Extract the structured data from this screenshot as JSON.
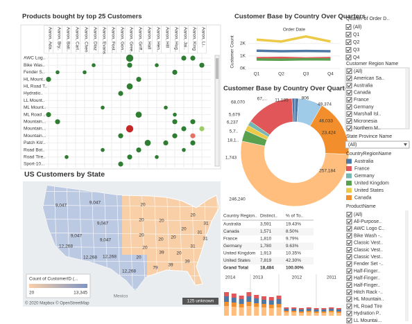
{
  "products": {
    "title": "Products bought by top 25 Customers",
    "columns": [
      "Aaron, Ada..",
      "Aaron, Bry..",
      "Aaron, Bati..",
      "Aaron, Carl..",
      "Aaron, Chen",
      "Aaron, Diaz",
      "Aaron, Evans",
      "Aaron, Fost..",
      "Aaron, Gon..",
      "Aaron, Gree..",
      "Aaron, Griff..",
      "Aaron, Hall",
      "Aaron, Hen..",
      "Aaron, Hill",
      "Aaron, Hug..",
      "Aaron, Jai..",
      "Aaron, King",
      "Aaron, Li.."
    ],
    "rows": [
      "AWC Log..",
      "Bike Was..",
      "Fender S..",
      "HL Mount..",
      "HL Road T..",
      "Hydratio..",
      "LL Mount..",
      "ML Mount..",
      "ML Road ..",
      "Mountain...",
      "Mountain...",
      "Mountain...",
      "Patch Kit/..",
      "Road Bot..",
      "Road Tire..",
      "Sport-10..."
    ],
    "color": "#2e7d32",
    "dots": [
      {
        "row": 0,
        "col": 9,
        "value": 5
      },
      {
        "row": 0,
        "col": 15,
        "value": 3
      },
      {
        "row": 0,
        "col": 16,
        "value": 3
      },
      {
        "row": 1,
        "col": 5,
        "value": 2
      },
      {
        "row": 1,
        "col": 9,
        "value": 3
      },
      {
        "row": 1,
        "col": 12,
        "value": 2
      },
      {
        "row": 1,
        "col": 17,
        "value": 3
      },
      {
        "row": 2,
        "col": 1,
        "value": 2
      },
      {
        "row": 2,
        "col": 4,
        "value": 2
      },
      {
        "row": 2,
        "col": 14,
        "value": 3
      },
      {
        "row": 3,
        "col": 0,
        "value": 3
      },
      {
        "row": 3,
        "col": 10,
        "value": 3
      },
      {
        "row": 4,
        "col": 9,
        "value": 4
      },
      {
        "row": 5,
        "col": 8,
        "value": 3
      },
      {
        "row": 7,
        "col": 6,
        "value": 2
      },
      {
        "row": 7,
        "col": 13,
        "value": 2
      },
      {
        "row": 8,
        "col": 0,
        "value": 3
      },
      {
        "row": 8,
        "col": 10,
        "value": 4
      },
      {
        "row": 8,
        "col": 14,
        "value": 2
      },
      {
        "row": 9,
        "col": 1,
        "value": 3
      },
      {
        "row": 9,
        "col": 14,
        "value": 3
      },
      {
        "row": 9,
        "col": 16,
        "value": 3
      },
      {
        "row": 10,
        "col": 9,
        "value": 5,
        "color": "#c62828"
      },
      {
        "row": 10,
        "col": 15,
        "value": 3
      },
      {
        "row": 10,
        "col": 17,
        "value": 3,
        "color": "#9ccc65"
      },
      {
        "row": 11,
        "col": 8,
        "value": 3
      },
      {
        "row": 11,
        "col": 14,
        "value": 3
      },
      {
        "row": 11,
        "col": 16,
        "value": 3,
        "color": "#e57368"
      },
      {
        "row": 12,
        "col": 11,
        "value": 4
      },
      {
        "row": 12,
        "col": 13,
        "value": 3
      },
      {
        "row": 12,
        "col": 16,
        "value": 3
      },
      {
        "row": 13,
        "col": 6,
        "value": 2
      },
      {
        "row": 13,
        "col": 10,
        "value": 3
      },
      {
        "row": 13,
        "col": 15,
        "value": 2
      },
      {
        "row": 14,
        "col": 2,
        "value": 2
      },
      {
        "row": 14,
        "col": 9,
        "value": 3
      },
      {
        "row": 14,
        "col": 12,
        "value": 2
      },
      {
        "row": 15,
        "col": 8,
        "value": 3
      }
    ]
  },
  "line": {
    "title": "Customer Base by Country Over Quarters",
    "x_label": "Order Date",
    "y_label": "Customer Count",
    "categories": [
      "Q1",
      "Q2",
      "Q3",
      "Q4"
    ],
    "ylim": [
      0,
      2700
    ],
    "yticks": [
      {
        "value": 0,
        "label": "0K"
      },
      {
        "value": 1000,
        "label": "1K"
      },
      {
        "value": 2000,
        "label": "2K"
      }
    ],
    "series": [
      {
        "color": "#edc948",
        "values": [
          2300,
          2150,
          2550,
          2150
        ]
      },
      {
        "color": "#4e79a7",
        "values": [
          1420,
          1380,
          1400,
          1380
        ]
      },
      {
        "color": "#e15759",
        "values": [
          820,
          850,
          800,
          830
        ]
      },
      {
        "color": "#59a14f",
        "values": [
          720,
          700,
          740,
          720
        ]
      }
    ]
  },
  "donut": {
    "title": "Customer Base by Country Over Quarters",
    "segments": [
      {
        "value": 4,
        "color": "#4e79a7"
      },
      {
        "value": 26,
        "color": "#a0cbe8"
      },
      {
        "value": 62,
        "color": "#f28e2b"
      },
      {
        "value": 190,
        "color": "#ffbe7d"
      },
      {
        "value": 12,
        "color": "#59a14f"
      },
      {
        "value": 6,
        "color": "#edc948"
      },
      {
        "value": 5,
        "color": "#76b7b2"
      },
      {
        "value": 52,
        "color": "#e15759"
      },
      {
        "value": 3,
        "color": "#4e79a7"
      }
    ],
    "labels": [
      "68,070",
      "67,...",
      "11,185",
      "806",
      "49,374",
      "5,679",
      "6,237",
      "46,033",
      "5,7..",
      "23,424",
      "18,1..",
      "1,743",
      "257,184",
      "246,240"
    ]
  },
  "filters": {
    "quarter_title": "Quarter of Order D..",
    "quarters": [
      "(All)",
      "Q1",
      "Q2",
      "Q3",
      "Q4"
    ],
    "region_title": "Customer Region Name",
    "regions": [
      "(All)",
      "American Sa..",
      "Australia",
      "Canada",
      "France",
      "Germany",
      "Marshall Isl..",
      "Micronesia",
      "Northern M.."
    ],
    "state_title": "State Province Name",
    "state_value": "(All)",
    "legend_title": "CountryRegionName",
    "legend": [
      {
        "name": "Australia",
        "color": "#4e79a7"
      },
      {
        "name": "France",
        "color": "#e15759"
      },
      {
        "name": "Germany",
        "color": "#76b7b2"
      },
      {
        "name": "United Kingdom",
        "color": "#59a14f"
      },
      {
        "name": "United States",
        "color": "#edc948"
      },
      {
        "name": "Canada",
        "color": "#f28e2b"
      }
    ],
    "product_title": "ProductName",
    "products": [
      "(All)",
      "All-Purpose..",
      "AWC Logo C..",
      "Bike Wash -..",
      "Classic Vest..",
      "Classic Vest..",
      "Classic Vest..",
      "Fender Set -..",
      "Half-Finger..",
      "Half-Finger..",
      "Half-Finger..",
      "Hitch Rack -..",
      "HL Mountain..",
      "HL Road Tire",
      "Hydration P..",
      "LL Mountai..."
    ]
  },
  "map": {
    "title": "US Customers by State",
    "labels": [
      "9,047",
      "9,047",
      "9,047",
      "9,047",
      "9,047",
      "12,268",
      "12,268",
      "12,268",
      "12,268",
      "20",
      "20",
      "20",
      "20",
      "20",
      "20",
      "20",
      "20",
      "20",
      "20",
      "20",
      "31",
      "31",
      "31",
      "31",
      "39",
      "39",
      "39",
      "79"
    ],
    "legend_title": "Count of CustomerID (...",
    "legend_min": "20",
    "legend_max": "13,345",
    "attribution": "© 2020 Mapbox © OpenStreetMap",
    "unknown": "125 unknown",
    "mexico": "Mexico"
  },
  "table": {
    "columns": [
      "Country Region..",
      "Distinct..",
      "% of To.."
    ],
    "rows": [
      [
        "Australia",
        "3,591",
        "19.43%"
      ],
      [
        "Canada",
        "1,571",
        "8.50%"
      ],
      [
        "France",
        "1,810",
        "9.79%"
      ],
      [
        "Germany",
        "1,780",
        "9.63%"
      ],
      [
        "United Kingdom",
        "1,913",
        "10.35%"
      ],
      [
        "United States",
        "7,819",
        "42.30%"
      ],
      [
        "Grand Total",
        "18,484",
        "100.00%"
      ]
    ]
  },
  "years": {
    "labels": [
      "2014",
      "2013",
      "2012",
      "2011"
    ],
    "ylim": [
      0,
      50
    ],
    "series": [
      {
        "color": "#ffbe7d",
        "values": [
          14,
          13,
          12,
          14,
          13,
          12,
          11,
          12,
          5,
          5,
          4,
          5,
          4,
          4,
          5,
          4
        ]
      },
      {
        "color": "#f28e2b",
        "values": [
          6,
          6,
          5,
          6,
          5,
          5,
          5,
          5,
          2,
          2,
          2,
          2,
          2,
          2,
          2,
          2
        ]
      },
      {
        "color": "#4e79a7",
        "values": [
          8,
          7,
          7,
          8,
          7,
          6,
          6,
          7,
          3,
          3,
          3,
          3,
          3,
          3,
          3,
          3
        ]
      },
      {
        "color": "#e15759",
        "values": [
          6,
          6,
          5,
          6,
          5,
          5,
          5,
          5,
          2,
          2,
          2,
          2,
          2,
          2,
          2,
          2
        ]
      }
    ]
  }
}
